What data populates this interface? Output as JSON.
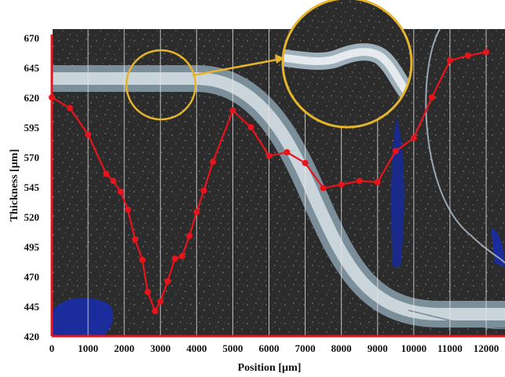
{
  "chart_data": {
    "type": "line",
    "title": "",
    "xlabel": "Position [µm]",
    "ylabel": "Thickness [µm]",
    "xlim": [
      0,
      12000
    ],
    "ylim": [
      420,
      670
    ],
    "x_ticks": [
      0,
      1000,
      2000,
      3000,
      4000,
      5000,
      6000,
      7000,
      8000,
      9000,
      10000,
      11000,
      12000
    ],
    "y_ticks": [
      420,
      445,
      470,
      495,
      520,
      545,
      570,
      595,
      620,
      645,
      670
    ],
    "grid": "vertical lines at x ticks",
    "background": "microscope photograph of a bent glass fiber on dark granite-like surface, with circular magnified inset",
    "series": [
      {
        "color": "#e8141c",
        "points": [
          [
            0,
            620
          ],
          [
            500,
            611
          ],
          [
            1000,
            589
          ],
          [
            1500,
            556
          ],
          [
            1700,
            550
          ],
          [
            1900,
            541
          ],
          [
            2100,
            526
          ],
          [
            2300,
            501
          ],
          [
            2500,
            484
          ],
          [
            2650,
            457
          ],
          [
            2850,
            441
          ],
          [
            3000,
            449
          ],
          [
            3200,
            466
          ],
          [
            3400,
            485
          ],
          [
            3600,
            487
          ],
          [
            3800,
            504
          ],
          [
            4000,
            524
          ],
          [
            4200,
            542
          ],
          [
            4450,
            566
          ],
          [
            5000,
            609
          ],
          [
            5500,
            595
          ],
          [
            6000,
            571
          ],
          [
            6500,
            574
          ],
          [
            7000,
            565
          ],
          [
            7500,
            544
          ],
          [
            8000,
            547
          ],
          [
            8500,
            550
          ],
          [
            9000,
            549
          ],
          [
            9500,
            575
          ],
          [
            10000,
            586
          ],
          [
            10500,
            620
          ],
          [
            11000,
            651
          ],
          [
            11500,
            655
          ],
          [
            12000,
            658
          ]
        ]
      }
    ],
    "annotations": [
      {
        "type": "circle",
        "color": "#e6b52c",
        "note": "highlight region around bend"
      },
      {
        "type": "arrow",
        "color": "#e6b52c",
        "note": "points to magnified inset"
      },
      {
        "type": "circle-inset",
        "color": "#e6b52c",
        "note": "zoomed view of fiber bend"
      }
    ]
  }
}
